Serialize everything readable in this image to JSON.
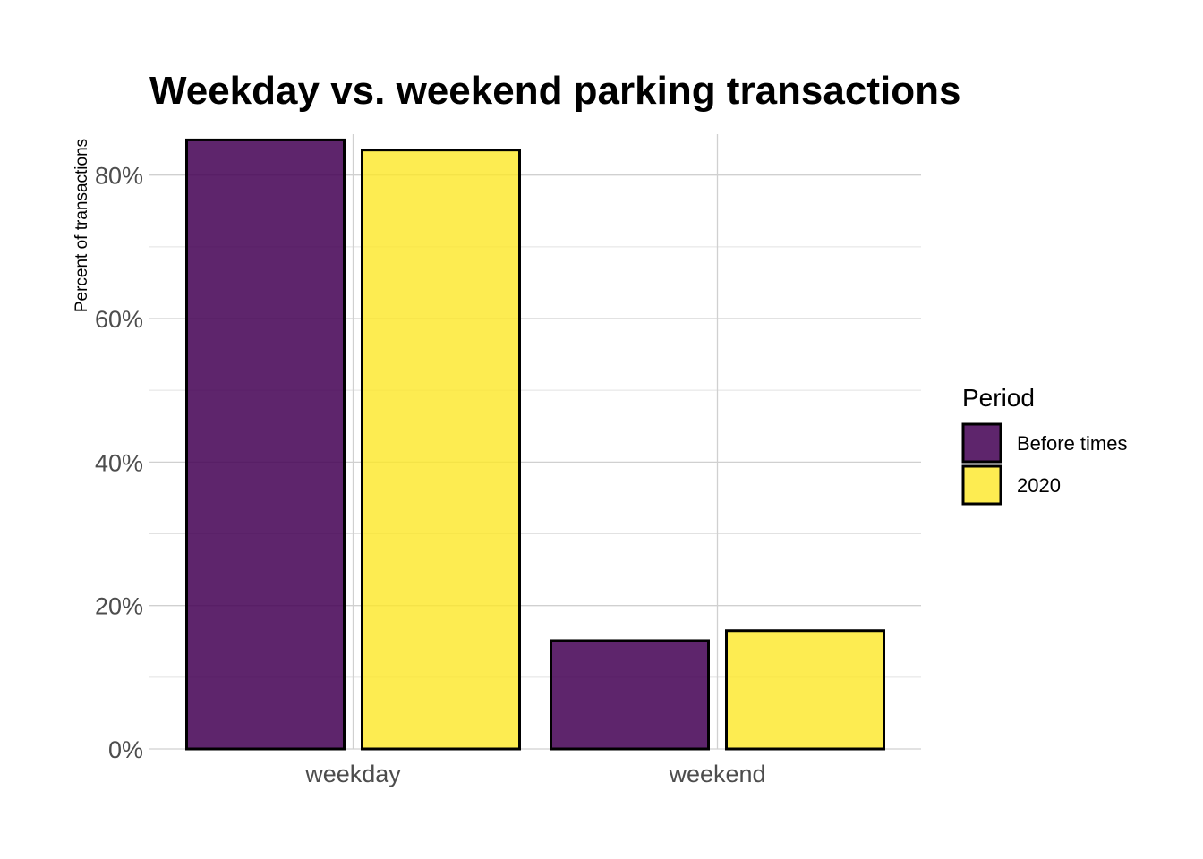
{
  "chart_data": {
    "type": "bar",
    "title": "Weekday vs. weekend parking transactions",
    "xlabel": "",
    "ylabel": "Percent of transactions",
    "categories": [
      "weekday",
      "weekend"
    ],
    "series": [
      {
        "name": "Before times",
        "color": "#440154",
        "values": [
          84.9,
          15.1
        ]
      },
      {
        "name": "2020",
        "color": "#FDE725",
        "values": [
          83.5,
          16.5
        ]
      }
    ],
    "ylim": [
      0,
      85.7
    ],
    "yticks": [
      0,
      20,
      40,
      60,
      80
    ],
    "ytick_labels": [
      "0%",
      "20%",
      "40%",
      "60%",
      "80%"
    ],
    "grid": true,
    "legend": {
      "title": "Period",
      "position": "right"
    }
  }
}
